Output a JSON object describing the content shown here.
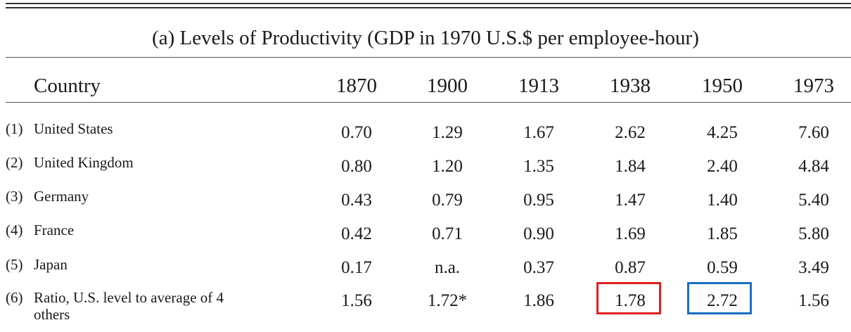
{
  "title": "(a) Levels of Productivity (GDP in 1970 U.S.$ per employee-hour)",
  "columns": {
    "country": "Country",
    "years": [
      "1870",
      "1900",
      "1913",
      "1938",
      "1950",
      "1973"
    ]
  },
  "rows": [
    {
      "num": "(1)",
      "label": "United States",
      "values": [
        "0.70",
        "1.29",
        "1.67",
        "2.62",
        "4.25",
        "7.60"
      ]
    },
    {
      "num": "(2)",
      "label": "United Kingdom",
      "values": [
        "0.80",
        "1.20",
        "1.35",
        "1.84",
        "2.40",
        "4.84"
      ]
    },
    {
      "num": "(3)",
      "label": "Germany",
      "values": [
        "0.43",
        "0.79",
        "0.95",
        "1.47",
        "1.40",
        "5.40"
      ]
    },
    {
      "num": "(4)",
      "label": "France",
      "values": [
        "0.42",
        "0.71",
        "0.90",
        "1.69",
        "1.85",
        "5.80"
      ]
    },
    {
      "num": "(5)",
      "label": "Japan",
      "values": [
        "0.17",
        "n.a.",
        "0.37",
        "0.87",
        "0.59",
        "3.49"
      ]
    },
    {
      "num": "(6)",
      "label": "Ratio, U.S. level to average of 4 others",
      "values": [
        "1.56",
        "1.72*",
        "1.86",
        "1.78",
        "2.72",
        "1.56"
      ]
    }
  ],
  "highlights": [
    {
      "label": "1.78",
      "color": "#e02020"
    },
    {
      "label": "2.72",
      "color": "#1a6fc0"
    }
  ]
}
